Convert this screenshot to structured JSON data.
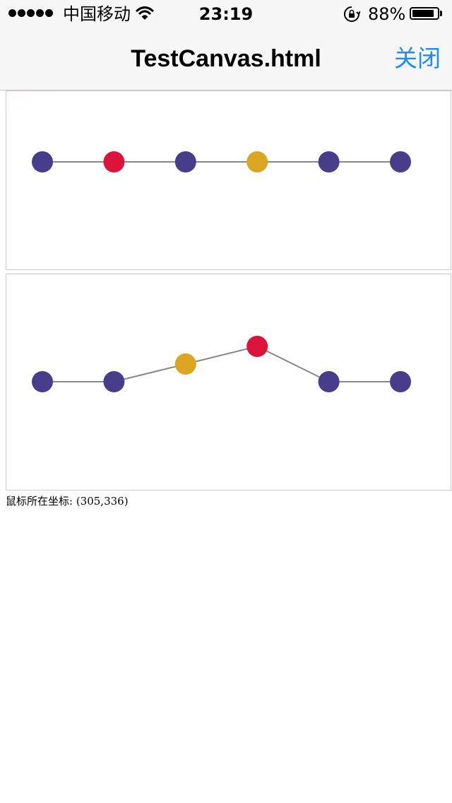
{
  "status_bar": {
    "carrier": "中国移动",
    "time": "23:19",
    "battery_percent": "88%",
    "battery_level": 0.88,
    "signal_bars": 5,
    "icons": [
      "signal-dots",
      "wifi-icon",
      "rotation-lock-icon",
      "battery-icon"
    ]
  },
  "nav": {
    "title": "TestCanvas.html",
    "close_label": "关闭"
  },
  "canvases": [
    {
      "name": "canvas-flat",
      "nodes": [
        {
          "color": "#483D8B",
          "level": 0
        },
        {
          "color": "#DC143C",
          "level": 0
        },
        {
          "color": "#483D8B",
          "level": 0
        },
        {
          "color": "#DAA520",
          "level": 0
        },
        {
          "color": "#483D8B",
          "level": 0
        },
        {
          "color": "#483D8B",
          "level": 0
        }
      ]
    },
    {
      "name": "canvas-raised",
      "nodes": [
        {
          "color": "#483D8B",
          "level": 0
        },
        {
          "color": "#483D8B",
          "level": 0
        },
        {
          "color": "#DAA520",
          "level": 1
        },
        {
          "color": "#DC143C",
          "level": 2
        },
        {
          "color": "#483D8B",
          "level": 0
        },
        {
          "color": "#483D8B",
          "level": 0
        }
      ]
    }
  ],
  "colors": {
    "node_primary": "#483D8B",
    "node_selected": "#DC143C",
    "node_hover": "#DAA520",
    "edge": "#888888",
    "accent": "#1a8cff"
  },
  "coord_label": "鼠标所在坐标: (305,336)"
}
